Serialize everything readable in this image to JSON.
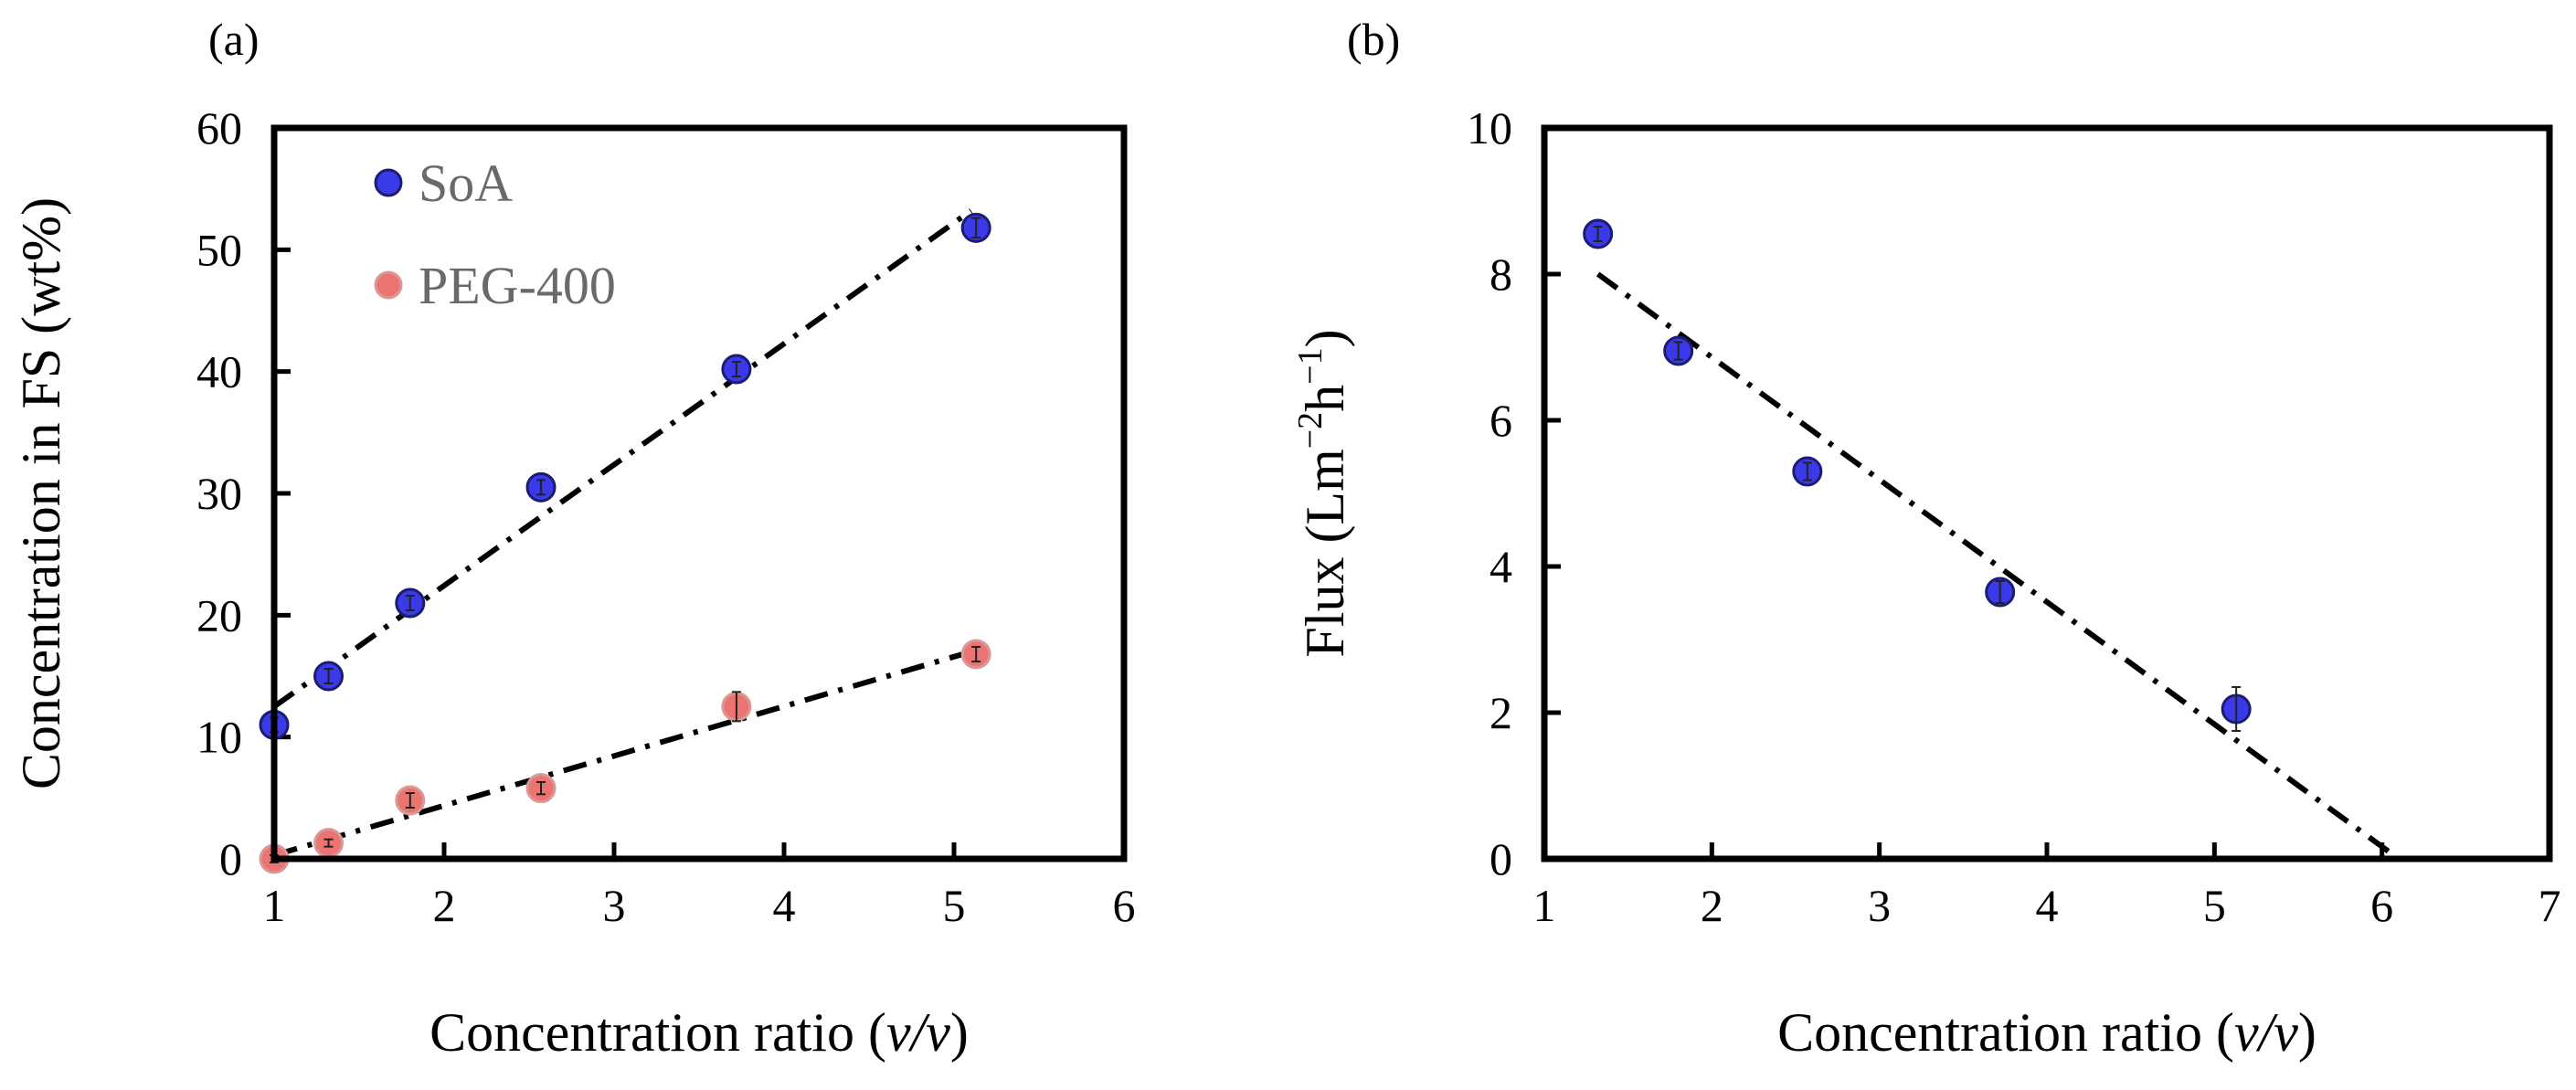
{
  "chart_data": [
    {
      "type": "scatter",
      "panel_label": "(a)",
      "xlabel_prefix": "Concentration ratio (",
      "xlabel_italic": "v/v",
      "xlabel_suffix": ")",
      "ylabel": "Concentration in FS (wt%)",
      "xlim": [
        1,
        6
      ],
      "ylim": [
        0,
        60
      ],
      "xticks": [
        "1",
        "2",
        "3",
        "4",
        "5",
        "6"
      ],
      "yticks": [
        "0",
        "10",
        "20",
        "30",
        "40",
        "50",
        "60"
      ],
      "legend_position": "top-left",
      "series": [
        {
          "name": "SoA",
          "color": "#3a3ae8",
          "points": [
            {
              "x": 1.0,
              "y": 11.0,
              "err": 0.6
            },
            {
              "x": 1.32,
              "y": 15.0,
              "err": 0.6
            },
            {
              "x": 1.8,
              "y": 21.0,
              "err": 0.6
            },
            {
              "x": 2.57,
              "y": 30.5,
              "err": 0.6
            },
            {
              "x": 3.72,
              "y": 40.2,
              "err": 0.6
            },
            {
              "x": 5.13,
              "y": 51.8,
              "err": 0.8
            }
          ],
          "fit": {
            "x": [
              1.0,
              5.1
            ],
            "y": [
              12.5,
              53.2
            ]
          }
        },
        {
          "name": "PEG-400",
          "color": "#ec7470",
          "points": [
            {
              "x": 1.0,
              "y": 0.0,
              "err": 0.3
            },
            {
              "x": 1.32,
              "y": 1.3,
              "err": 0.3
            },
            {
              "x": 1.8,
              "y": 4.8,
              "err": 0.6
            },
            {
              "x": 2.57,
              "y": 5.8,
              "err": 0.5
            },
            {
              "x": 3.72,
              "y": 12.5,
              "err": 1.2
            },
            {
              "x": 5.13,
              "y": 16.8,
              "err": 0.6
            }
          ],
          "fit": {
            "x": [
              1.0,
              5.1
            ],
            "y": [
              0.3,
              17.0
            ]
          }
        }
      ]
    },
    {
      "type": "scatter",
      "panel_label": "(b)",
      "xlabel_prefix": "Concentration ratio (",
      "xlabel_italic": "v/v",
      "xlabel_suffix": ")",
      "ylabel_prefix": "Flux (Lm",
      "ylabel_sup1": "−2",
      "ylabel_mid": "h",
      "ylabel_sup2": "−1",
      "ylabel_suffix": ")",
      "xlim": [
        1,
        7
      ],
      "ylim": [
        0,
        10
      ],
      "xticks": [
        "1",
        "2",
        "3",
        "4",
        "5",
        "6",
        "7"
      ],
      "yticks": [
        "0",
        "2",
        "4",
        "6",
        "8",
        "10"
      ],
      "series": [
        {
          "name": "Flux",
          "color": "#3a3ae8",
          "points": [
            {
              "x": 1.32,
              "y": 8.55,
              "err": 0.1
            },
            {
              "x": 1.8,
              "y": 6.95,
              "err": 0.12
            },
            {
              "x": 2.57,
              "y": 5.3,
              "err": 0.12
            },
            {
              "x": 3.72,
              "y": 3.65,
              "err": 0.15
            },
            {
              "x": 5.13,
              "y": 2.05,
              "err": 0.3
            }
          ],
          "fit": {
            "x": [
              1.32,
              6.1
            ],
            "y": [
              8.0,
              0.0
            ]
          }
        }
      ]
    }
  ]
}
